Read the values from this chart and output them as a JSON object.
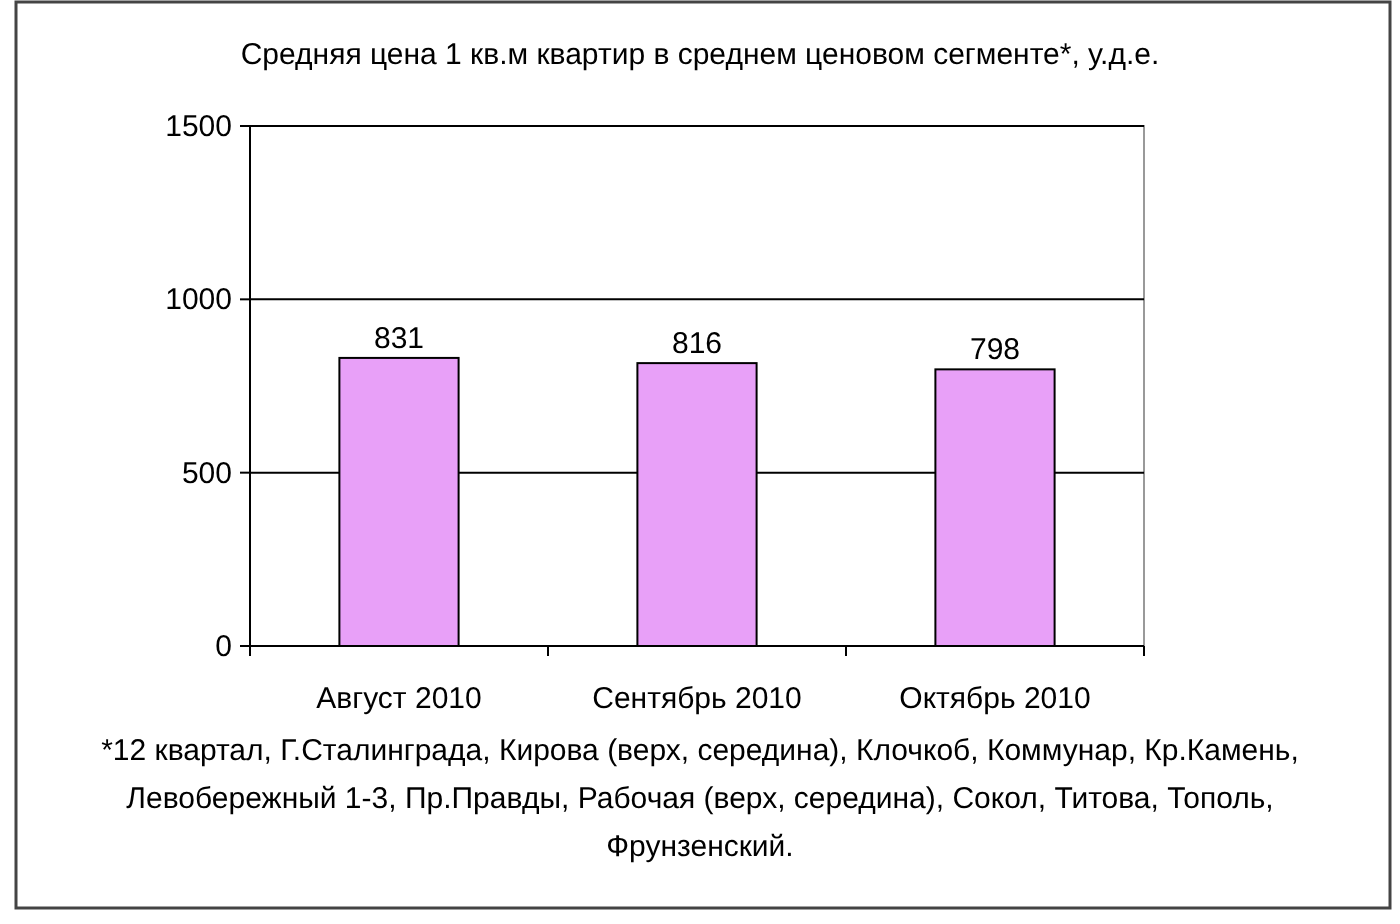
{
  "chart_data": {
    "type": "bar",
    "title": "Средняя цена 1 кв.м квартир в среднем ценовом сегменте*, у.д.е.",
    "categories": [
      "Август 2010",
      "Сентябрь 2010",
      "Октябрь 2010"
    ],
    "values": [
      831,
      816,
      798
    ],
    "color": "#e8a0f8",
    "data_labels": true,
    "ylim": [
      0,
      1500
    ],
    "yticks": [
      0,
      500,
      1000,
      1500
    ],
    "grid": "y",
    "annotations": [
      "*12 квартал, Г.Сталинграда, Кирова (верх, середина), Клочкоб, Коммунар, Кр.Камень, Левобережный 1-3, Пр.Правды, Рабочая (верх, середина), Сокол, Титова, Тополь, Фрунзенский."
    ]
  }
}
